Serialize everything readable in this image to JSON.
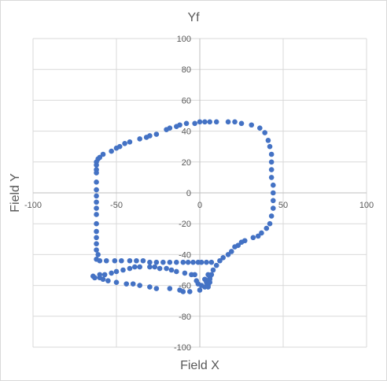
{
  "chart_data": {
    "type": "scatter",
    "title": "Yf",
    "xlabel": "Field X",
    "ylabel": "Field Y",
    "xlim": [
      -100,
      100
    ],
    "ylim": [
      -100,
      100
    ],
    "x_ticks": [
      -100,
      -50,
      0,
      50,
      100
    ],
    "y_ticks": [
      -100,
      -80,
      -60,
      -40,
      -20,
      0,
      20,
      40,
      60,
      80,
      100
    ],
    "grid": true,
    "legend": "none",
    "marker_color": "#4472C4",
    "series": [
      {
        "points": [
          [
            -62,
            15
          ],
          [
            -62,
            18
          ],
          [
            -62,
            20
          ],
          [
            -61,
            22
          ],
          [
            -60,
            23
          ],
          [
            -58,
            25
          ],
          [
            -53,
            27
          ],
          [
            -50,
            29
          ],
          [
            -48,
            30
          ],
          [
            -45,
            32
          ],
          [
            -42,
            33
          ],
          [
            -36,
            35
          ],
          [
            -32,
            36
          ],
          [
            -30,
            37
          ],
          [
            -26,
            38
          ],
          [
            -20,
            41
          ],
          [
            -18,
            42
          ],
          [
            -14,
            43
          ],
          [
            -12,
            44
          ],
          [
            -8,
            45
          ],
          [
            -3,
            45
          ],
          [
            0,
            46
          ],
          [
            3,
            46
          ],
          [
            6,
            46
          ],
          [
            10,
            46
          ],
          [
            17,
            46
          ],
          [
            21,
            46
          ],
          [
            25,
            45
          ],
          [
            31,
            44
          ],
          [
            36,
            42
          ],
          [
            39,
            39
          ],
          [
            41,
            34
          ],
          [
            42,
            30
          ],
          [
            43,
            25
          ],
          [
            43,
            20
          ],
          [
            43,
            15
          ],
          [
            43,
            10
          ],
          [
            44,
            5
          ],
          [
            44,
            0
          ],
          [
            44,
            -5
          ],
          [
            44,
            -10
          ],
          [
            43,
            -15
          ],
          [
            42,
            -20
          ],
          [
            40,
            -23
          ],
          [
            37,
            -26
          ],
          [
            35,
            -28
          ],
          [
            32,
            -29
          ],
          [
            27,
            -31
          ],
          [
            25,
            -32
          ],
          [
            23,
            -34
          ],
          [
            21,
            -35
          ],
          [
            19,
            -38
          ],
          [
            17,
            -40
          ],
          [
            14,
            -42
          ],
          [
            12,
            -44
          ],
          [
            10,
            -47
          ],
          [
            8,
            -50
          ],
          [
            7,
            -53
          ],
          [
            6,
            -55
          ],
          [
            5,
            -58
          ],
          [
            5,
            -61
          ],
          [
            3,
            -61
          ],
          [
            1,
            -60
          ],
          [
            -1,
            -59
          ],
          [
            -2,
            -57
          ],
          [
            0,
            -63
          ],
          [
            -6,
            -64
          ],
          [
            -10,
            -64
          ],
          [
            -12,
            -63
          ],
          [
            -18,
            -62
          ],
          [
            -26,
            -62
          ],
          [
            -30,
            -61
          ],
          [
            -36,
            -60
          ],
          [
            -40,
            -59
          ],
          [
            -44,
            -59
          ],
          [
            -50,
            -58
          ],
          [
            -55,
            -57
          ],
          [
            -58,
            -56
          ],
          [
            -60,
            -55
          ],
          [
            -63,
            -55
          ],
          [
            -64,
            -54
          ],
          [
            -63,
            -55
          ],
          [
            -60,
            -53
          ],
          [
            -57,
            -53
          ],
          [
            -53,
            -52
          ],
          [
            -50,
            -51
          ],
          [
            -46,
            -50
          ],
          [
            -42,
            -49
          ],
          [
            -39,
            -48
          ],
          [
            -36,
            -48
          ],
          [
            -30,
            -48
          ],
          [
            -27,
            -48
          ],
          [
            -24,
            -49
          ],
          [
            -20,
            -49
          ],
          [
            -17,
            -50
          ],
          [
            -14,
            -51
          ],
          [
            -9,
            -52
          ],
          [
            -5,
            -53
          ],
          [
            -3,
            -53
          ],
          [
            5,
            -53
          ],
          [
            6,
            -56
          ],
          [
            6,
            -58
          ],
          [
            5,
            -60
          ],
          [
            4,
            -58
          ],
          [
            3,
            -56
          ],
          [
            -61,
            -40
          ],
          [
            -62,
            -43
          ],
          [
            -60,
            -44
          ],
          [
            -56,
            -44
          ],
          [
            -51,
            -44
          ],
          [
            -47,
            -44
          ],
          [
            -42,
            -44
          ],
          [
            -38,
            -44
          ],
          [
            -34,
            -44
          ],
          [
            -30,
            -45
          ],
          [
            -26,
            -45
          ],
          [
            -22,
            -45
          ],
          [
            -18,
            -45
          ],
          [
            -14,
            -45
          ],
          [
            -10,
            -45
          ],
          [
            -7,
            -45
          ],
          [
            -4,
            -45
          ],
          [
            -1,
            -45
          ],
          [
            1,
            -45
          ],
          [
            4,
            -45
          ],
          [
            7,
            -45
          ],
          [
            -62,
            -37
          ],
          [
            -62,
            -33
          ],
          [
            -62,
            -29
          ],
          [
            -62,
            -25
          ],
          [
            -62,
            -20
          ],
          [
            -62,
            -14
          ],
          [
            -62,
            -10
          ],
          [
            -62,
            -6
          ],
          [
            -62,
            -2
          ],
          [
            -62,
            2
          ],
          [
            -62,
            7
          ],
          [
            -62,
            13
          ]
        ]
      }
    ]
  }
}
